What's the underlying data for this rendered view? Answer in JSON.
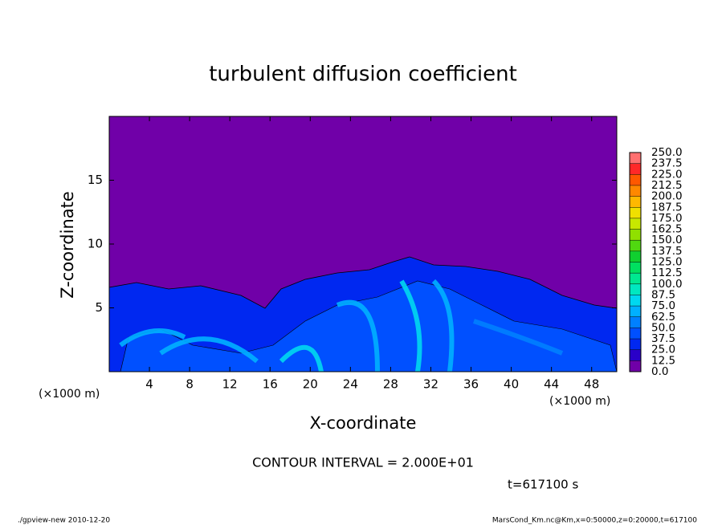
{
  "chart_data": {
    "type": "contour",
    "title": "turbulent diffusion coefficient",
    "x_label": "X-coordinate",
    "y_label": "Z-coordinate",
    "x_unit_label": "(×1000 m)",
    "y_unit_label": "(×1000 m)",
    "xlim": [
      0,
      50.5
    ],
    "ylim": [
      0,
      20
    ],
    "xticks": [
      4,
      8,
      12,
      16,
      20,
      24,
      28,
      32,
      36,
      40,
      44,
      48
    ],
    "yticks": [
      5,
      10,
      15
    ],
    "levels": [
      {
        "value": 0,
        "label": "0.0"
      },
      {
        "value": 12.5,
        "label": "12.5"
      },
      {
        "value": 25,
        "label": "25.0"
      },
      {
        "value": 37.5,
        "label": "37.5"
      },
      {
        "value": 50,
        "label": "50.0"
      },
      {
        "value": 62.5,
        "label": "62.5"
      },
      {
        "value": 75,
        "label": "75.0"
      },
      {
        "value": 87.5,
        "label": "87.5"
      },
      {
        "value": 100,
        "label": "100.0"
      },
      {
        "value": 112.5,
        "label": "112.5"
      },
      {
        "value": 125,
        "label": "125.0"
      },
      {
        "value": 137.5,
        "label": "137.5"
      },
      {
        "value": 150,
        "label": "150.0"
      },
      {
        "value": 162.5,
        "label": "162.5"
      },
      {
        "value": 175,
        "label": "175.0"
      },
      {
        "value": 187.5,
        "label": "187.5"
      },
      {
        "value": 200,
        "label": "200.0"
      },
      {
        "value": 212.5,
        "label": "212.5"
      },
      {
        "value": 225,
        "label": "225.0"
      },
      {
        "value": 237.5,
        "label": "237.5"
      },
      {
        "value": 250,
        "label": "250.0"
      }
    ],
    "colors": [
      "#7000a8",
      "#2a00c8",
      "#0028f0",
      "#0050ff",
      "#0080ff",
      "#00b0ff",
      "#00d8f0",
      "#00e8c0",
      "#00e890",
      "#00e060",
      "#10d030",
      "#50d810",
      "#90e000",
      "#c8e800",
      "#f0e000",
      "#ffb800",
      "#ff8800",
      "#ff5800",
      "#ff2828",
      "#ff7070"
    ],
    "contour_interval": "CONTOUR INTERVAL = 2.000E+01",
    "time_label": "t=617100 s",
    "footer_left": "./gpview-new   2010-12-20",
    "footer_right": "MarsCond_Km.nc@Km,x=0:50000,z=0:20000,t=617100"
  }
}
